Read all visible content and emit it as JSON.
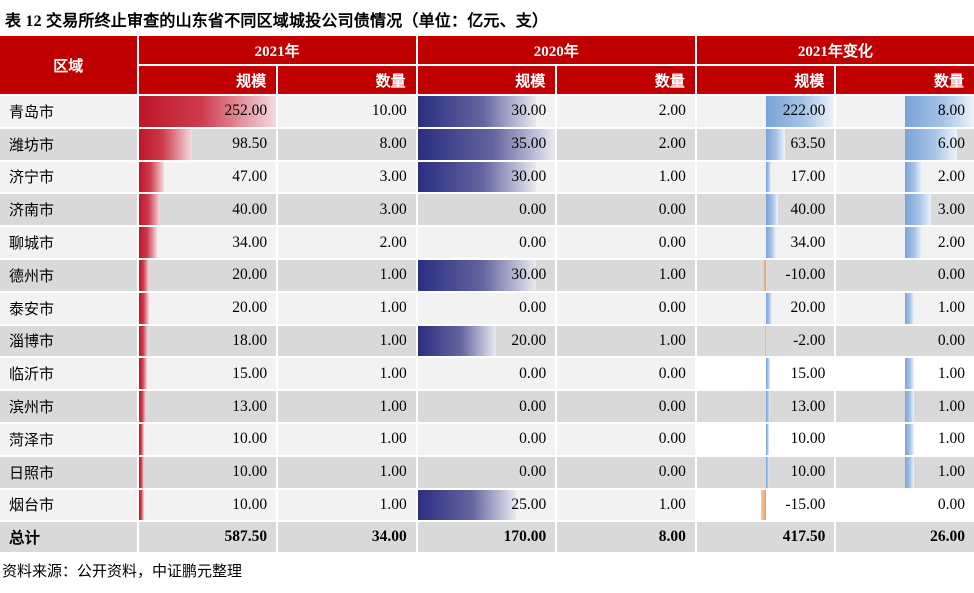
{
  "title": "表 12 交易所终止审查的山东省不同区域城投公司债情况（单位：亿元、支）",
  "source_note": "资料来源：公开资料，中证鹏元整理",
  "header": {
    "region": "区域",
    "groups": [
      {
        "label": "2021年",
        "subs": [
          "规模",
          "数量"
        ]
      },
      {
        "label": "2020年",
        "subs": [
          "规模",
          "数量"
        ]
      },
      {
        "label": "2021年变化",
        "subs": [
          "规模",
          "数量"
        ]
      }
    ]
  },
  "rows": [
    {
      "region": "青岛市",
      "values": [
        252.0,
        10.0,
        30.0,
        2.0,
        222.0,
        8.0
      ],
      "change_bg_white": false
    },
    {
      "region": "潍坊市",
      "values": [
        98.5,
        8.0,
        35.0,
        2.0,
        63.5,
        6.0
      ],
      "change_bg_white": false
    },
    {
      "region": "济宁市",
      "values": [
        47.0,
        3.0,
        30.0,
        1.0,
        17.0,
        2.0
      ],
      "change_bg_white": false
    },
    {
      "region": "济南市",
      "values": [
        40.0,
        3.0,
        0.0,
        0.0,
        40.0,
        3.0
      ],
      "change_bg_white": false
    },
    {
      "region": "聊城市",
      "values": [
        34.0,
        2.0,
        0.0,
        0.0,
        34.0,
        2.0
      ],
      "change_bg_white": false
    },
    {
      "region": "德州市",
      "values": [
        20.0,
        1.0,
        30.0,
        1.0,
        -10.0,
        0.0
      ],
      "change_bg_white": false
    },
    {
      "region": "泰安市",
      "values": [
        20.0,
        1.0,
        0.0,
        0.0,
        20.0,
        1.0
      ],
      "change_bg_white": false
    },
    {
      "region": "淄博市",
      "values": [
        18.0,
        1.0,
        20.0,
        1.0,
        -2.0,
        0.0
      ],
      "change_bg_white": false
    },
    {
      "region": "临沂市",
      "values": [
        15.0,
        1.0,
        0.0,
        0.0,
        15.0,
        1.0
      ],
      "change_bg_white": true
    },
    {
      "region": "滨州市",
      "values": [
        13.0,
        1.0,
        0.0,
        0.0,
        13.0,
        1.0
      ],
      "change_bg_white": false
    },
    {
      "region": "菏泽市",
      "values": [
        10.0,
        1.0,
        0.0,
        0.0,
        10.0,
        1.0
      ],
      "change_bg_white": true
    },
    {
      "region": "日照市",
      "values": [
        10.0,
        1.0,
        0.0,
        0.0,
        10.0,
        1.0
      ],
      "change_bg_white": false
    },
    {
      "region": "烟台市",
      "values": [
        10.0,
        1.0,
        25.0,
        1.0,
        -15.0,
        0.0
      ],
      "change_bg_white": true
    }
  ],
  "total": {
    "label": "总计",
    "values": [
      587.5,
      34.0,
      170.0,
      8.0,
      417.5,
      26.0
    ]
  },
  "bars": {
    "col_types": [
      "red",
      null,
      "navy",
      null,
      "axis",
      "axis"
    ],
    "col_max": [
      252,
      null,
      35,
      null,
      222,
      8
    ],
    "axis_fraction": 0.5
  },
  "colors": {
    "header_bg": "#c00000",
    "header_text": "#ffffff",
    "row_light": "#f2f2f2",
    "row_dark": "#d9d9d9",
    "bar_red": "#bd1628",
    "bar_navy": "#2b2d82",
    "bar_blue": "#79a3d7",
    "bar_negative_orange": "#ee9e64"
  },
  "chart_data": {
    "type": "table",
    "title": "表 12 交易所终止审查的山东省不同区域城投公司债情况（单位：亿元、支）",
    "categories": [
      "青岛市",
      "潍坊市",
      "济宁市",
      "济南市",
      "聊城市",
      "德州市",
      "泰安市",
      "淄博市",
      "临沂市",
      "滨州市",
      "菏泽市",
      "日照市",
      "烟台市",
      "总计"
    ],
    "series": [
      {
        "name": "2021年规模",
        "values": [
          252.0,
          98.5,
          47.0,
          40.0,
          34.0,
          20.0,
          20.0,
          18.0,
          15.0,
          13.0,
          10.0,
          10.0,
          10.0,
          587.5
        ]
      },
      {
        "name": "2021年数量",
        "values": [
          10.0,
          8.0,
          3.0,
          3.0,
          2.0,
          1.0,
          1.0,
          1.0,
          1.0,
          1.0,
          1.0,
          1.0,
          1.0,
          34.0
        ]
      },
      {
        "name": "2020年规模",
        "values": [
          30.0,
          35.0,
          30.0,
          0.0,
          0.0,
          30.0,
          0.0,
          20.0,
          0.0,
          0.0,
          0.0,
          0.0,
          25.0,
          170.0
        ]
      },
      {
        "name": "2020年数量",
        "values": [
          2.0,
          2.0,
          1.0,
          0.0,
          0.0,
          1.0,
          0.0,
          1.0,
          0.0,
          0.0,
          0.0,
          0.0,
          1.0,
          8.0
        ]
      },
      {
        "name": "2021年变化规模",
        "values": [
          222.0,
          63.5,
          17.0,
          40.0,
          34.0,
          -10.0,
          20.0,
          -2.0,
          15.0,
          13.0,
          10.0,
          10.0,
          -15.0,
          417.5
        ]
      },
      {
        "name": "2021年变化数量",
        "values": [
          8.0,
          6.0,
          2.0,
          3.0,
          2.0,
          0.0,
          1.0,
          0.0,
          1.0,
          1.0,
          1.0,
          1.0,
          0.0,
          26.0
        ]
      }
    ],
    "notes": "data bars: red = 2021规模 (scale max 252), navy = 2020规模 (scale max 35), light blue from mid-cell axis = 2021变化 positive, thin orange left of axis = 2021变化 negative"
  }
}
